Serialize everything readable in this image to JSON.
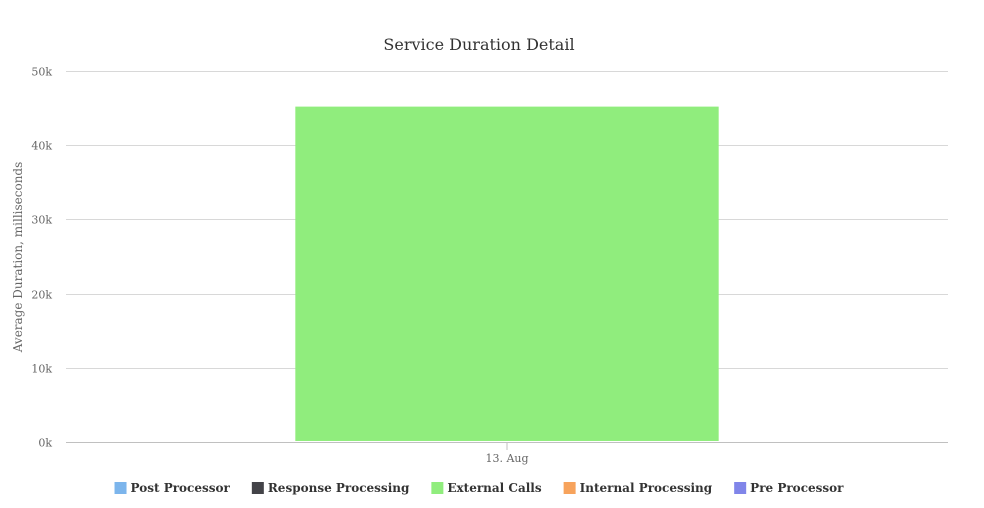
{
  "chart_data": {
    "type": "bar",
    "stacked": true,
    "title": "Service Duration Detail",
    "ylabel": "Average Duration, milliseconds",
    "xlabel": "",
    "categories": [
      "13. Aug"
    ],
    "ylim": [
      0,
      50000
    ],
    "yticks": [
      0,
      10000,
      20000,
      30000,
      40000,
      50000
    ],
    "ytick_labels": [
      "0k",
      "10k",
      "20k",
      "30k",
      "40k",
      "50k"
    ],
    "grid": true,
    "legend_position": "bottom-center",
    "series": [
      {
        "name": "Post Processor",
        "color": "#7cb5ec",
        "values": [
          0
        ]
      },
      {
        "name": "Response Processing",
        "color": "#434348",
        "values": [
          0
        ]
      },
      {
        "name": "External Calls",
        "color": "#90ed7d",
        "values": [
          45200
        ]
      },
      {
        "name": "Internal Processing",
        "color": "#f7a35c",
        "values": [
          0
        ]
      },
      {
        "name": "Pre Processor",
        "color": "#8085e9",
        "values": [
          0
        ]
      }
    ]
  }
}
